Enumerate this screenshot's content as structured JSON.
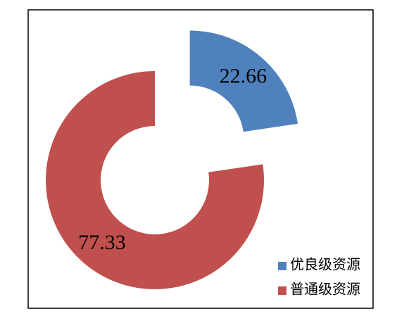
{
  "chart_data": {
    "type": "donut",
    "categories": [
      "优良级资源",
      "普通级资源"
    ],
    "values": [
      22.66,
      77.33
    ],
    "colors": [
      "#4f81bd",
      "#c0504d"
    ],
    "exploded": [
      true,
      false
    ],
    "legend": "bottom-right"
  }
}
